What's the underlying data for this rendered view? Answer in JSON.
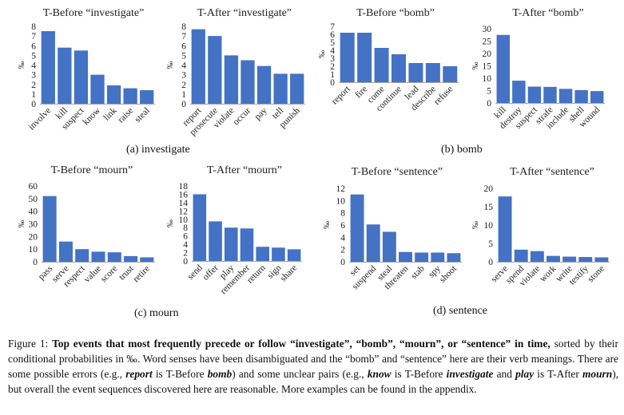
{
  "chart_data": [
    {
      "type": "bar",
      "title": "T-Before “investigate”",
      "ylabel": "‰",
      "ylim": [
        0,
        8
      ],
      "yticks": [
        0,
        1,
        2,
        3,
        4,
        5,
        6,
        7,
        8
      ],
      "categories": [
        "involve",
        "kill",
        "suspect",
        "know",
        "link",
        "raise",
        "steal"
      ],
      "values": [
        7.5,
        5.8,
        5.5,
        3.0,
        1.9,
        1.6,
        1.4
      ]
    },
    {
      "type": "bar",
      "title": "T-After “investigate”",
      "ylabel": "‰",
      "ylim": [
        0,
        8
      ],
      "yticks": [
        0,
        1,
        2,
        3,
        4,
        5,
        6,
        7,
        8
      ],
      "categories": [
        "report",
        "prosecute",
        "violate",
        "occur",
        "pay",
        "tell",
        "punish"
      ],
      "values": [
        7.7,
        7.0,
        5.0,
        4.5,
        3.9,
        3.1,
        3.1
      ]
    },
    {
      "type": "bar",
      "title": "T-Before “bomb”",
      "ylabel": "‰",
      "ylim": [
        0,
        7
      ],
      "yticks": [
        0,
        1,
        2,
        3,
        4,
        5,
        6,
        7
      ],
      "categories": [
        "report",
        "fire",
        "come",
        "continue",
        "lead",
        "describe",
        "refuse"
      ],
      "values": [
        6.2,
        6.2,
        4.3,
        3.5,
        2.4,
        2.4,
        2.0
      ]
    },
    {
      "type": "bar",
      "title": "T-After “bomb”",
      "ylabel": "‰",
      "ylim": [
        0,
        30
      ],
      "yticks": [
        0,
        5,
        10,
        15,
        20,
        25,
        30
      ],
      "categories": [
        "kill",
        "destroy",
        "suspect",
        "strafe",
        "include",
        "shell",
        "wound"
      ],
      "values": [
        27.5,
        9.0,
        6.6,
        6.5,
        5.7,
        5.2,
        4.8
      ]
    },
    {
      "type": "bar",
      "title": "T-Before “mourn”",
      "ylabel": "‰",
      "ylim": [
        0,
        60
      ],
      "yticks": [
        0,
        10,
        20,
        30,
        40,
        50,
        60
      ],
      "categories": [
        "pass",
        "serve",
        "respect",
        "value",
        "score",
        "trust",
        "retire"
      ],
      "values": [
        52,
        16,
        10,
        8,
        7.5,
        4.5,
        3.5
      ]
    },
    {
      "type": "bar",
      "title": "T-After “mourn”",
      "ylabel": "‰",
      "ylim": [
        0,
        18
      ],
      "yticks": [
        0,
        2,
        4,
        6,
        8,
        10,
        12,
        14,
        16,
        18
      ],
      "categories": [
        "send",
        "offer",
        "play",
        "remember",
        "return",
        "sign",
        "share"
      ],
      "values": [
        16,
        9.5,
        8.0,
        7.8,
        3.4,
        3.2,
        2.8
      ]
    },
    {
      "type": "bar",
      "title": "T-Before “sentence”",
      "ylabel": "‰",
      "ylim": [
        0,
        12
      ],
      "yticks": [
        0,
        2,
        4,
        6,
        8,
        10,
        12
      ],
      "categories": [
        "set",
        "suspend",
        "steal",
        "threaten",
        "stab",
        "spy",
        "shoot"
      ],
      "values": [
        11.0,
        6.1,
        4.9,
        1.6,
        1.5,
        1.5,
        1.4
      ]
    },
    {
      "type": "bar",
      "title": "T-After “sentence”",
      "ylabel": "‰",
      "ylim": [
        0,
        20
      ],
      "yticks": [
        0,
        5,
        10,
        15,
        20
      ],
      "categories": [
        "serve",
        "spend",
        "violate",
        "work",
        "write",
        "testify",
        "stone"
      ],
      "values": [
        17.8,
        3.3,
        2.9,
        1.6,
        1.4,
        1.3,
        1.2
      ]
    }
  ],
  "subcaptions": [
    "(a) investigate",
    "(b) bomb",
    "(c) mourn",
    "(d) sentence"
  ],
  "caption": {
    "lead": "Figure 1:  ",
    "bold": "Top events that most frequently precede or follow “investigate”, “bomb”, “mourn”, or “sentence” in time,",
    "rest": " sorted by their conditional probabilities in ‰. Word senses have been disambiguated and the “bomb” and “sentence” here are their verb meanings. There are some possible errors (e.g., report is T-Before bomb) and some unclear pairs (e.g., know is T-Before investigate and play is T-After mourn), but overall the event sequences discovered here are reasonable. More examples can be found in the appendix."
  },
  "colors": {
    "bar": "#4472c4",
    "axis": "#a6a6a6",
    "text": "#222222"
  }
}
